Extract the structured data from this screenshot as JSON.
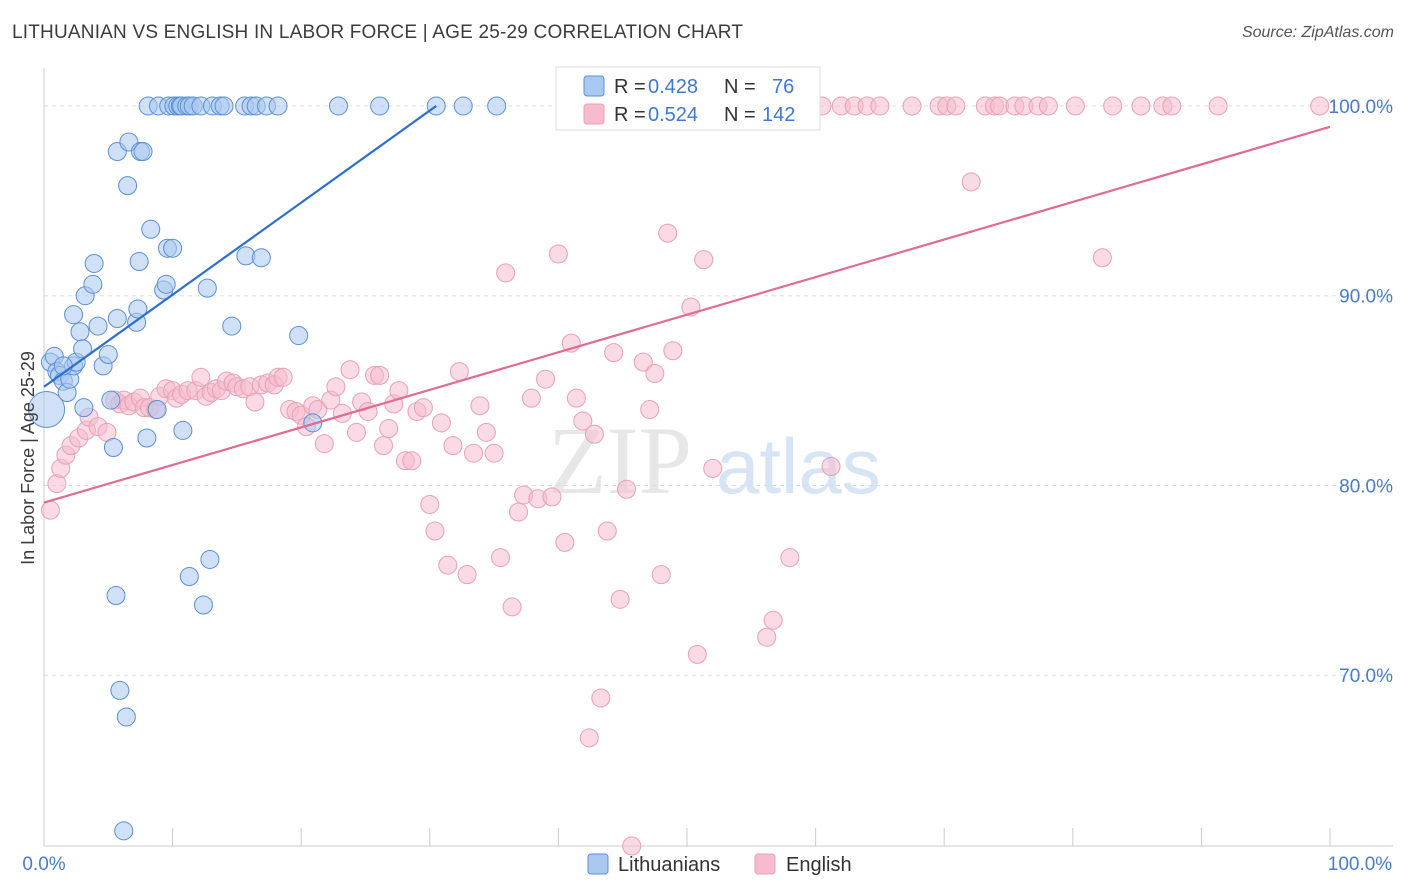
{
  "title": "LITHUANIAN VS ENGLISH IN LABOR FORCE | AGE 25-29 CORRELATION CHART",
  "source": "Source: ZipAtlas.com",
  "watermark": {
    "zip": "ZIP",
    "atlas": "atlas"
  },
  "colors": {
    "blue_fill": "#a9c8f0",
    "blue_stroke": "#5b8fd6",
    "blue_line": "#2d6fcc",
    "pink_fill": "#f6bccd",
    "pink_stroke": "#e8a0b5",
    "pink_line": "#e06b93",
    "tick_text": "#4a7cc9",
    "grid": "#dddddd"
  },
  "legend": {
    "rows": [
      {
        "r_label": "R = ",
        "r_value": "0.428",
        "n_label": "N = ",
        "n_value": "76"
      },
      {
        "r_label": "R = ",
        "r_value": "0.524",
        "n_label": "N = ",
        "n_value": "142"
      }
    ]
  },
  "bottom_legend": [
    "Lithuanians",
    "English"
  ],
  "chart_data": {
    "type": "scatter",
    "title": "LITHUANIAN VS ENGLISH IN LABOR FORCE | AGE 25-29 CORRELATION CHART",
    "xlabel": "",
    "ylabel": "In Labor Force | Age 25-29",
    "xlim": [
      0,
      100
    ],
    "ylim": [
      61,
      102
    ],
    "x_tick_labels": [
      "0.0%",
      "100.0%"
    ],
    "y_ticks": [
      70,
      80,
      90,
      100
    ],
    "y_tick_labels": [
      "70.0%",
      "80.0%",
      "90.0%",
      "100.0%"
    ],
    "grid": "horizontal dashed",
    "legend_position": "top-center",
    "series": [
      {
        "name": "Lithuanians",
        "R": 0.428,
        "N": 76,
        "trend": {
          "x": [
            0,
            30.5
          ],
          "y": [
            85.2,
            100.0
          ]
        },
        "points": [
          [
            0.2,
            84.0
          ],
          [
            0.5,
            86.5
          ],
          [
            0.8,
            86.8
          ],
          [
            1.0,
            86.0
          ],
          [
            1.2,
            85.8
          ],
          [
            1.5,
            85.5
          ],
          [
            1.8,
            84.9
          ],
          [
            2.0,
            85.6
          ],
          [
            2.3,
            86.3
          ],
          [
            2.5,
            86.5
          ],
          [
            1.5,
            86.3
          ],
          [
            2.8,
            88.1
          ],
          [
            3.0,
            87.2
          ],
          [
            3.1,
            84.1
          ],
          [
            2.3,
            89.0
          ],
          [
            3.2,
            90.0
          ],
          [
            3.8,
            90.6
          ],
          [
            4.2,
            88.4
          ],
          [
            3.9,
            91.7
          ],
          [
            4.6,
            86.3
          ],
          [
            5.0,
            86.9
          ],
          [
            5.2,
            84.5
          ],
          [
            5.4,
            82.0
          ],
          [
            5.6,
            74.2
          ],
          [
            5.9,
            69.2
          ],
          [
            5.7,
            88.8
          ],
          [
            6.2,
            61.8
          ],
          [
            6.4,
            67.8
          ],
          [
            5.7,
            97.6
          ],
          [
            6.6,
            98.1
          ],
          [
            6.5,
            95.8
          ],
          [
            7.5,
            97.6
          ],
          [
            7.7,
            97.6
          ],
          [
            7.2,
            88.6
          ],
          [
            7.3,
            89.3
          ],
          [
            7.4,
            91.8
          ],
          [
            8.0,
            82.5
          ],
          [
            8.3,
            93.5
          ],
          [
            8.8,
            84.0
          ],
          [
            9.3,
            90.3
          ],
          [
            9.5,
            90.6
          ],
          [
            9.6,
            92.5
          ],
          [
            10.0,
            92.5
          ],
          [
            10.8,
            82.9
          ],
          [
            11.3,
            75.2
          ],
          [
            12.4,
            73.7
          ],
          [
            12.7,
            90.4
          ],
          [
            12.9,
            76.1
          ],
          [
            14.6,
            88.4
          ],
          [
            15.7,
            92.1
          ],
          [
            16.9,
            92.0
          ],
          [
            19.8,
            87.9
          ],
          [
            20.9,
            83.3
          ],
          [
            8.1,
            100
          ],
          [
            8.9,
            100
          ],
          [
            9.7,
            100
          ],
          [
            10.1,
            100
          ],
          [
            10.4,
            100
          ],
          [
            10.6,
            100
          ],
          [
            10.7,
            100
          ],
          [
            11.1,
            100
          ],
          [
            11.3,
            100
          ],
          [
            11.6,
            100
          ],
          [
            12.2,
            100
          ],
          [
            13.1,
            100
          ],
          [
            13.7,
            100
          ],
          [
            14.0,
            100
          ],
          [
            15.6,
            100
          ],
          [
            16.1,
            100
          ],
          [
            16.5,
            100
          ],
          [
            17.3,
            100
          ],
          [
            18.2,
            100
          ],
          [
            22.9,
            100
          ],
          [
            26.1,
            100
          ],
          [
            30.5,
            100
          ],
          [
            32.6,
            100
          ],
          [
            35.2,
            100
          ]
        ]
      },
      {
        "name": "English",
        "R": 0.524,
        "N": 142,
        "trend": {
          "x": [
            0,
            100
          ],
          "y": [
            79.1,
            98.9
          ]
        },
        "points": [
          [
            0.5,
            78.7
          ],
          [
            1.0,
            80.1
          ],
          [
            1.3,
            80.9
          ],
          [
            1.7,
            81.6
          ],
          [
            2.1,
            82.1
          ],
          [
            2.7,
            82.5
          ],
          [
            3.3,
            82.9
          ],
          [
            3.5,
            83.6
          ],
          [
            4.2,
            83.1
          ],
          [
            4.9,
            82.8
          ],
          [
            5.5,
            84.5
          ],
          [
            5.9,
            84.3
          ],
          [
            6.2,
            84.5
          ],
          [
            6.6,
            84.2
          ],
          [
            7.0,
            84.4
          ],
          [
            7.5,
            84.6
          ],
          [
            7.8,
            84.1
          ],
          [
            8.2,
            84.1
          ],
          [
            8.7,
            84.0
          ],
          [
            9.0,
            84.7
          ],
          [
            9.5,
            85.1
          ],
          [
            10.0,
            85.0
          ],
          [
            10.3,
            84.6
          ],
          [
            10.7,
            84.8
          ],
          [
            11.2,
            85.0
          ],
          [
            11.8,
            85.0
          ],
          [
            12.2,
            85.7
          ],
          [
            12.6,
            84.7
          ],
          [
            13.0,
            84.9
          ],
          [
            13.4,
            85.1
          ],
          [
            13.8,
            85.0
          ],
          [
            14.2,
            85.5
          ],
          [
            14.7,
            85.4
          ],
          [
            15.0,
            85.2
          ],
          [
            15.5,
            85.1
          ],
          [
            16.0,
            85.2
          ],
          [
            16.4,
            84.4
          ],
          [
            16.9,
            85.3
          ],
          [
            17.4,
            85.4
          ],
          [
            17.9,
            85.3
          ],
          [
            18.2,
            85.7
          ],
          [
            18.6,
            85.7
          ],
          [
            19.1,
            84.0
          ],
          [
            19.6,
            83.9
          ],
          [
            20.0,
            83.7
          ],
          [
            20.4,
            83.1
          ],
          [
            20.9,
            84.2
          ],
          [
            21.3,
            84.0
          ],
          [
            21.8,
            82.2
          ],
          [
            22.3,
            84.5
          ],
          [
            22.7,
            85.2
          ],
          [
            23.2,
            83.8
          ],
          [
            23.8,
            86.1
          ],
          [
            24.3,
            82.8
          ],
          [
            24.7,
            84.4
          ],
          [
            25.2,
            83.9
          ],
          [
            25.7,
            85.8
          ],
          [
            26.1,
            85.8
          ],
          [
            26.4,
            82.1
          ],
          [
            26.8,
            83.0
          ],
          [
            27.2,
            84.3
          ],
          [
            27.6,
            85.0
          ],
          [
            28.1,
            81.3
          ],
          [
            28.6,
            81.3
          ],
          [
            29.0,
            83.9
          ],
          [
            29.5,
            84.1
          ],
          [
            30.0,
            79.0
          ],
          [
            30.4,
            77.6
          ],
          [
            30.9,
            83.3
          ],
          [
            31.4,
            75.8
          ],
          [
            31.8,
            82.1
          ],
          [
            32.3,
            86.0
          ],
          [
            32.9,
            75.3
          ],
          [
            33.4,
            81.7
          ],
          [
            33.9,
            84.2
          ],
          [
            34.4,
            82.8
          ],
          [
            35.0,
            81.7
          ],
          [
            35.5,
            76.2
          ],
          [
            35.9,
            91.2
          ],
          [
            36.4,
            73.6
          ],
          [
            36.9,
            78.6
          ],
          [
            37.3,
            79.5
          ],
          [
            37.9,
            84.6
          ],
          [
            38.4,
            79.3
          ],
          [
            39.0,
            85.6
          ],
          [
            39.5,
            79.4
          ],
          [
            40.0,
            92.2
          ],
          [
            40.5,
            77.0
          ],
          [
            41.0,
            87.5
          ],
          [
            41.4,
            84.6
          ],
          [
            41.9,
            83.4
          ],
          [
            42.4,
            66.7
          ],
          [
            42.8,
            82.7
          ],
          [
            43.3,
            68.8
          ],
          [
            43.8,
            77.6
          ],
          [
            44.3,
            87.0
          ],
          [
            44.8,
            74.0
          ],
          [
            45.3,
            79.8
          ],
          [
            45.7,
            61.0
          ],
          [
            46.2,
            100
          ],
          [
            46.6,
            86.5
          ],
          [
            47.1,
            84.0
          ],
          [
            47.5,
            85.9
          ],
          [
            48.0,
            75.3
          ],
          [
            48.5,
            93.3
          ],
          [
            48.9,
            87.1
          ],
          [
            49.3,
            100
          ],
          [
            49.8,
            100
          ],
          [
            50.3,
            89.4
          ],
          [
            50.8,
            71.1
          ],
          [
            51.3,
            91.9
          ],
          [
            52.0,
            80.9
          ],
          [
            52.5,
            100
          ],
          [
            53.1,
            100
          ],
          [
            54.0,
            100
          ],
          [
            55.0,
            100
          ],
          [
            56.2,
            72.0
          ],
          [
            56.7,
            72.9
          ],
          [
            58.0,
            76.2
          ],
          [
            60.5,
            100
          ],
          [
            61.2,
            81.0
          ],
          [
            62.0,
            100
          ],
          [
            63.0,
            100
          ],
          [
            64.0,
            100
          ],
          [
            65.0,
            100
          ],
          [
            67.5,
            100
          ],
          [
            69.6,
            100
          ],
          [
            70.2,
            100
          ],
          [
            70.9,
            100
          ],
          [
            72.1,
            96.0
          ],
          [
            73.2,
            100
          ],
          [
            73.9,
            100
          ],
          [
            74.3,
            100
          ],
          [
            75.5,
            100
          ],
          [
            76.2,
            100
          ],
          [
            77.3,
            100
          ],
          [
            78.1,
            100
          ],
          [
            80.2,
            100
          ],
          [
            82.3,
            92.0
          ],
          [
            83.1,
            100
          ],
          [
            85.3,
            100
          ],
          [
            87.0,
            100
          ],
          [
            87.7,
            100
          ],
          [
            91.3,
            100
          ],
          [
            99.2,
            100
          ]
        ]
      }
    ]
  }
}
